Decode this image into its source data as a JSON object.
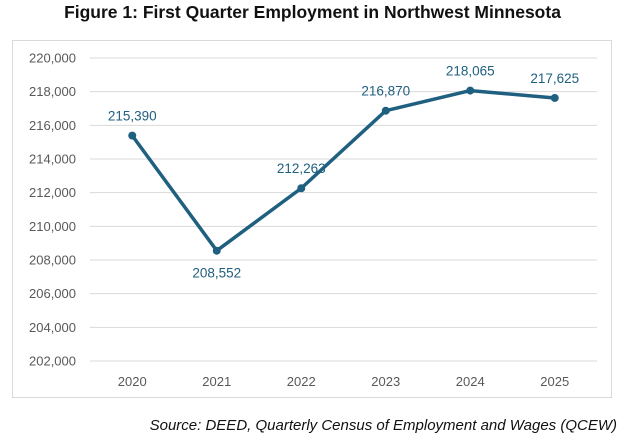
{
  "chart_data": {
    "type": "line",
    "title": "Figure 1: First Quarter Employment in Northwest Minnesota",
    "xlabel": "",
    "ylabel": "",
    "categories": [
      "2020",
      "2021",
      "2022",
      "2023",
      "2024",
      "2025"
    ],
    "series": [
      {
        "name": "Employment",
        "values": [
          215390,
          208552,
          212263,
          216870,
          218065,
          217625
        ],
        "labels": [
          "215,390",
          "208,552",
          "212,263",
          "216,870",
          "218,065",
          "217,625"
        ],
        "color": "#1f5f7f"
      }
    ],
    "ylim": [
      202000,
      220000
    ],
    "yticks": [
      202000,
      204000,
      206000,
      208000,
      210000,
      212000,
      214000,
      216000,
      218000,
      220000
    ],
    "ytick_labels": [
      "202,000",
      "204,000",
      "206,000",
      "208,000",
      "210,000",
      "212,000",
      "214,000",
      "216,000",
      "218,000",
      "220,000"
    ],
    "grid": true,
    "legend": "none",
    "source": "Source: DEED, Quarterly Census of Employment and Wages (QCEW)"
  },
  "colors": {
    "line": "#1f5f7f",
    "grid": "#d9d9d9",
    "tick_text": "#595959"
  }
}
